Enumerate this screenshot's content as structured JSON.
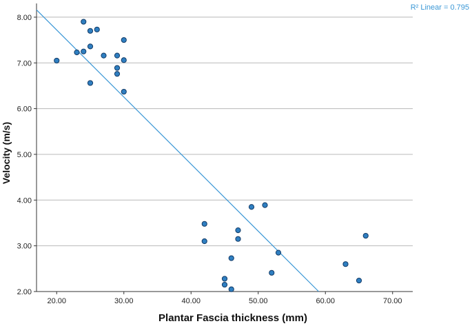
{
  "chart_data": {
    "type": "scatter",
    "xlabel": "Plantar Fascia thickness (mm)",
    "ylabel": "Velocity (m/s)",
    "xlim": [
      17.0,
      73.0
    ],
    "ylim": [
      2.0,
      8.3
    ],
    "x_ticks": [
      "20.00",
      "30.00",
      "40.00",
      "50.00",
      "60.00",
      "70.00"
    ],
    "y_ticks": [
      "2.00",
      "3.00",
      "4.00",
      "5.00",
      "6.00",
      "7.00",
      "8.00"
    ],
    "grid": "horizontal",
    "points": [
      {
        "x": 20,
        "y": 7.05
      },
      {
        "x": 23,
        "y": 7.23
      },
      {
        "x": 24,
        "y": 7.25
      },
      {
        "x": 24,
        "y": 7.9
      },
      {
        "x": 25,
        "y": 7.7
      },
      {
        "x": 25,
        "y": 7.36
      },
      {
        "x": 25,
        "y": 6.56
      },
      {
        "x": 26,
        "y": 7.73
      },
      {
        "x": 27,
        "y": 7.16
      },
      {
        "x": 29,
        "y": 7.16
      },
      {
        "x": 29,
        "y": 6.89
      },
      {
        "x": 29,
        "y": 6.76
      },
      {
        "x": 30,
        "y": 7.5
      },
      {
        "x": 30,
        "y": 7.06
      },
      {
        "x": 30,
        "y": 6.37
      },
      {
        "x": 42,
        "y": 3.48
      },
      {
        "x": 42,
        "y": 3.1
      },
      {
        "x": 45,
        "y": 2.28
      },
      {
        "x": 45,
        "y": 2.15
      },
      {
        "x": 46,
        "y": 2.73
      },
      {
        "x": 46,
        "y": 2.05
      },
      {
        "x": 47,
        "y": 3.34
      },
      {
        "x": 47,
        "y": 3.15
      },
      {
        "x": 49,
        "y": 3.85
      },
      {
        "x": 51,
        "y": 3.89
      },
      {
        "x": 52,
        "y": 2.41
      },
      {
        "x": 53,
        "y": 2.85
      },
      {
        "x": 63,
        "y": 2.6
      },
      {
        "x": 65,
        "y": 2.24
      },
      {
        "x": 66,
        "y": 3.22
      }
    ],
    "fit_line": {
      "x": [
        17.0,
        59.0
      ],
      "y": [
        8.16,
        2.0
      ]
    },
    "annotation": "R² Linear = 0.795",
    "colors": {
      "marker_fill": "#2f7fc1",
      "marker_stroke": "#123a66",
      "fit_line": "#3a97d6",
      "grid": "#b8b8b8",
      "annotation": "#3a97d6"
    }
  }
}
